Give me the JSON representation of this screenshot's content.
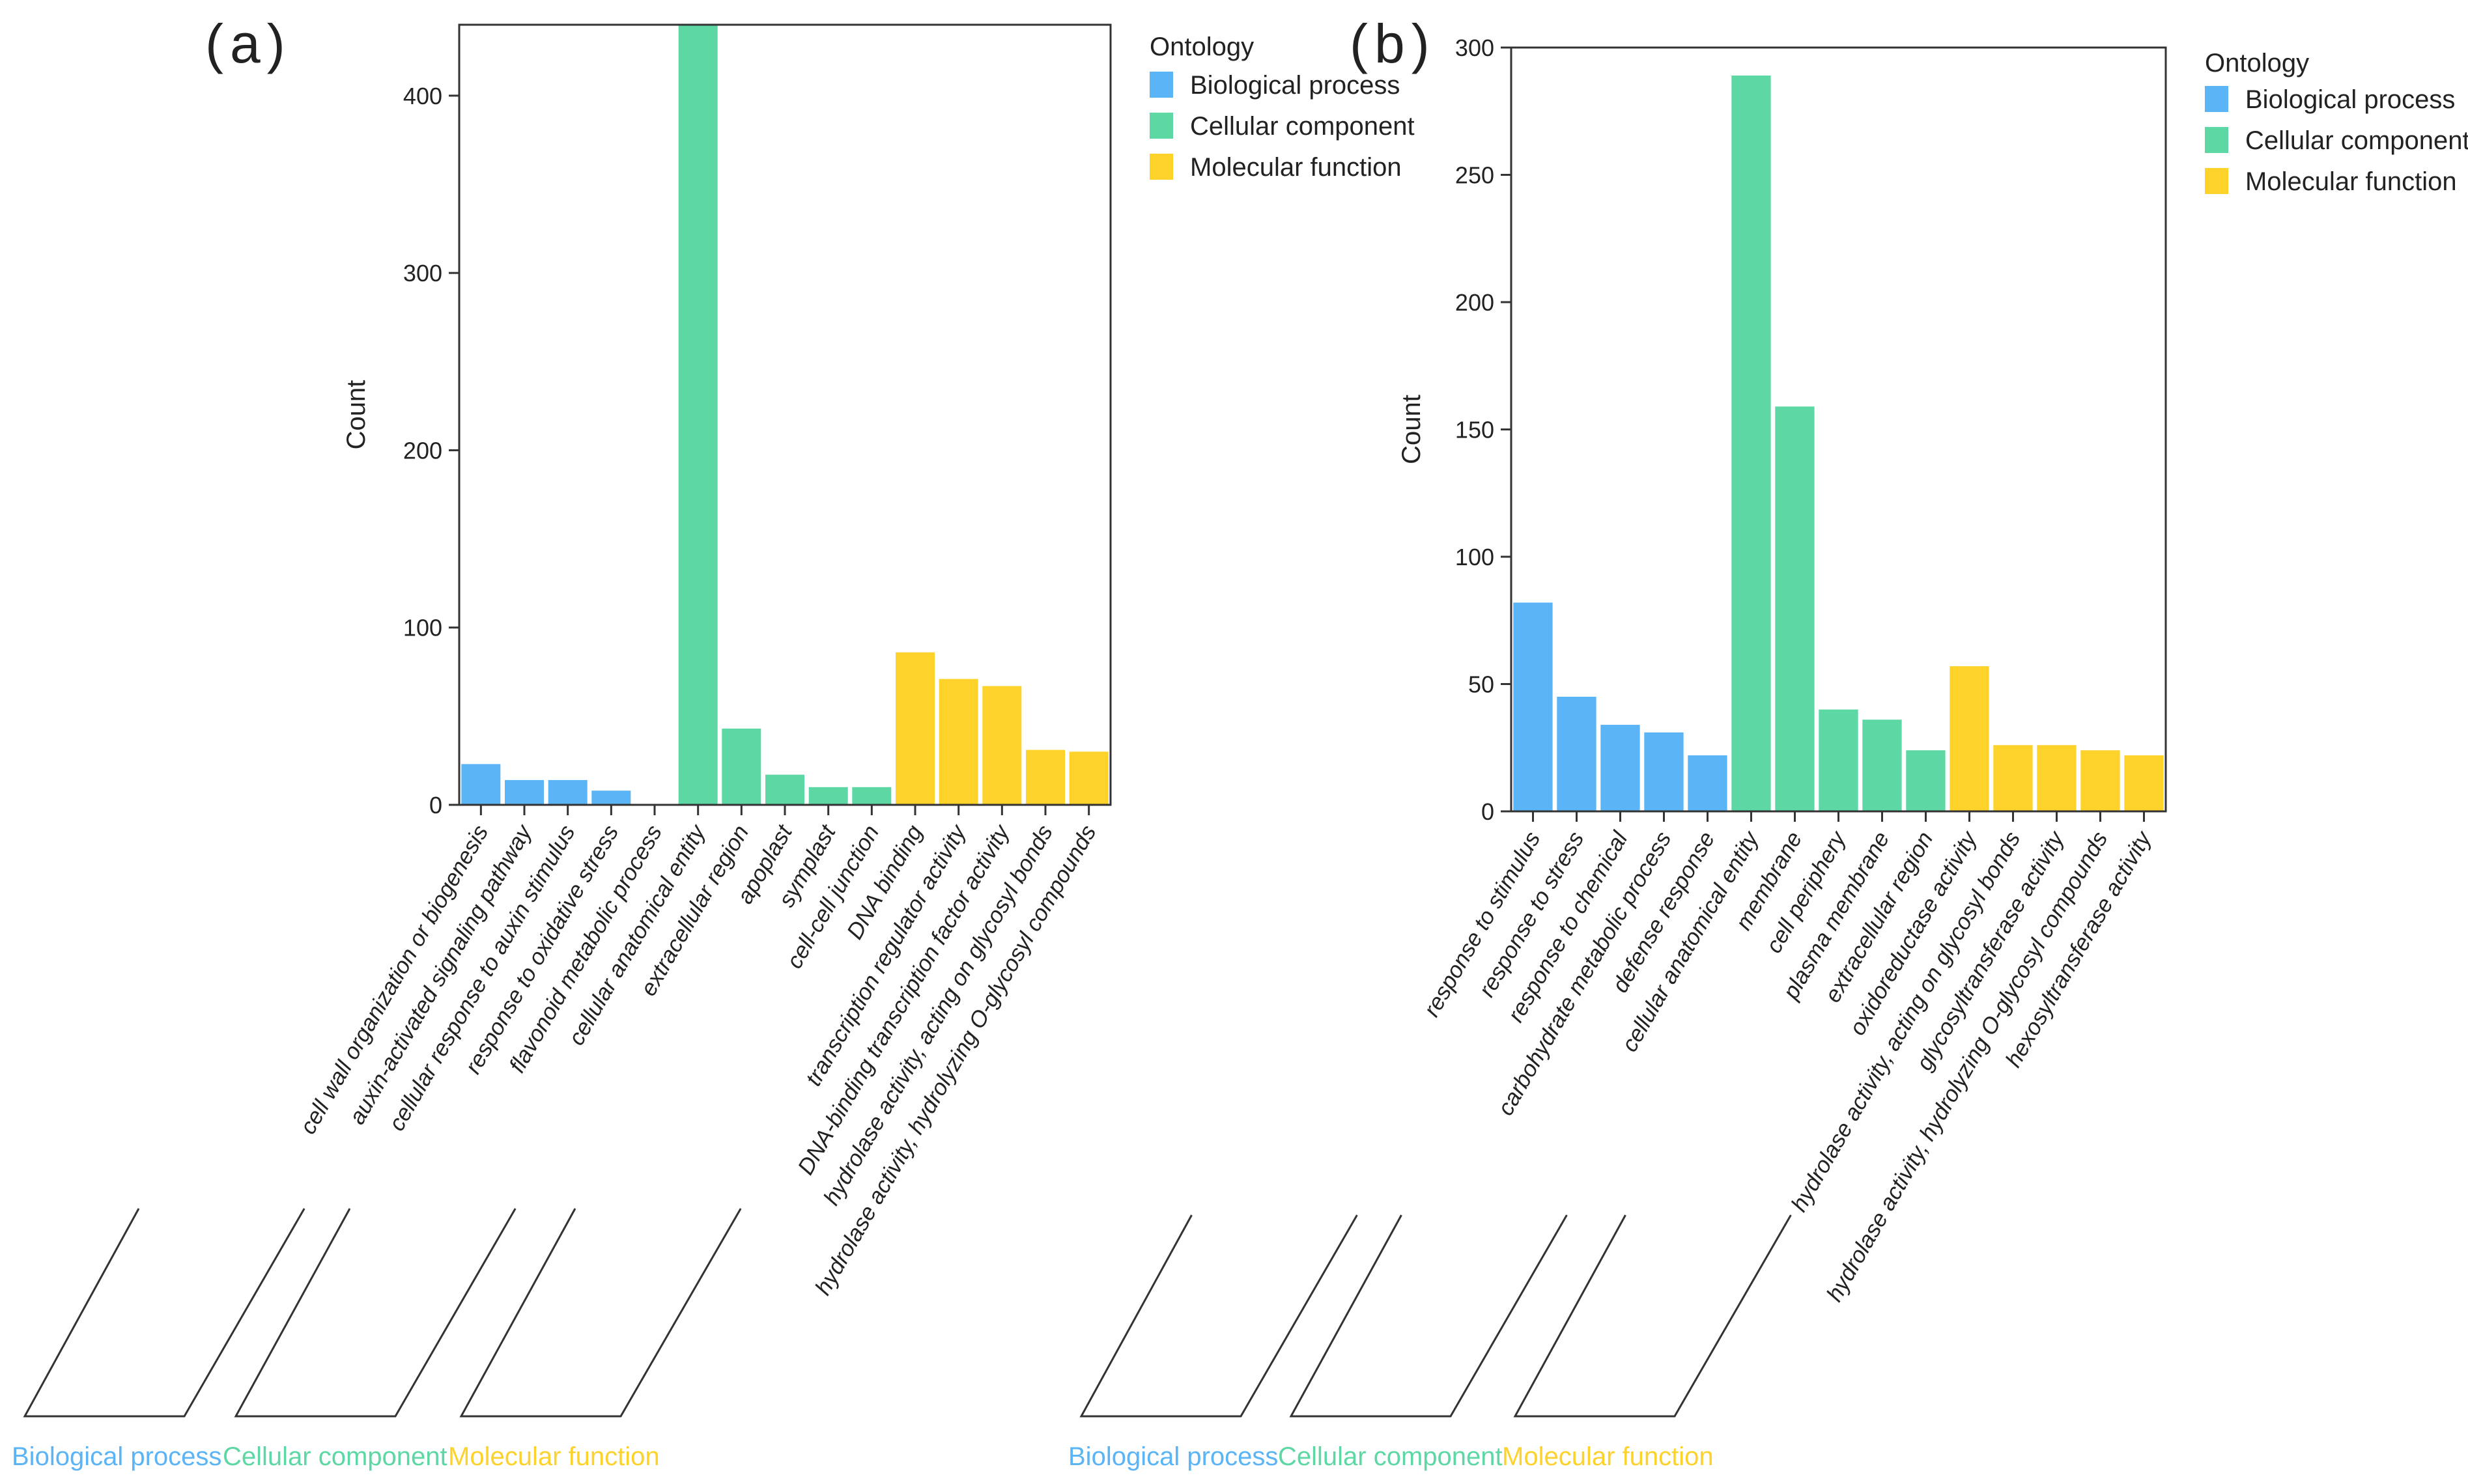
{
  "colors": {
    "bp": "#5ab4f5",
    "cc": "#5dd8a4",
    "mf": "#fdd22a",
    "axis": "#333333",
    "bracket": "#333333"
  },
  "chart_data": [
    {
      "panel": "(a)",
      "panel_open": "(",
      "panel_letter": "a",
      "panel_close": ")",
      "type": "bar",
      "ylabel": "Count",
      "ylim": [
        0,
        440
      ],
      "yticks": [
        0,
        100,
        200,
        300,
        400
      ],
      "legend": {
        "title": "Ontology",
        "placement": "right",
        "entries": [
          {
            "key": "bp",
            "label": "Biological process"
          },
          {
            "key": "cc",
            "label": "Cellular component"
          },
          {
            "key": "mf",
            "label": "Molecular function"
          }
        ]
      },
      "groups": [
        {
          "key": "bp",
          "label": "Biological process"
        },
        {
          "key": "cc",
          "label": "Cellular component"
        },
        {
          "key": "mf",
          "label": "Molecular function"
        }
      ],
      "bars": [
        {
          "category": "cell wall organization or biogenesis",
          "value": 23,
          "group": "bp"
        },
        {
          "category": "auxin-activated signaling pathway",
          "value": 14,
          "group": "bp"
        },
        {
          "category": "cellular response to auxin stimulus",
          "value": 14,
          "group": "bp"
        },
        {
          "category": "response to oxidative stress",
          "value": 8,
          "group": "bp"
        },
        {
          "category": "flavonoid metabolic process",
          "value": 0,
          "group": "bp"
        },
        {
          "category": "cellular anatomical entity",
          "value": 440,
          "group": "cc"
        },
        {
          "category": "extracellular region",
          "value": 43,
          "group": "cc"
        },
        {
          "category": "apoplast",
          "value": 17,
          "group": "cc"
        },
        {
          "category": "symplast",
          "value": 10,
          "group": "cc"
        },
        {
          "category": "cell-cell junction",
          "value": 10,
          "group": "cc"
        },
        {
          "category": "DNA binding",
          "value": 86,
          "group": "mf"
        },
        {
          "category": "transcription regulator activity",
          "value": 71,
          "group": "mf"
        },
        {
          "category": "DNA-binding transcription factor activity",
          "value": 67,
          "group": "mf"
        },
        {
          "category": "hydrolase activity, acting on glycosyl bonds",
          "value": 31,
          "group": "mf"
        },
        {
          "category": "hydrolase activity, hydrolyzing O-glycosyl compounds",
          "value": 30,
          "group": "mf"
        }
      ]
    },
    {
      "panel": "(b)",
      "panel_open": "(",
      "panel_letter": "b",
      "panel_close": ")",
      "type": "bar",
      "ylabel": "Count",
      "ylim": [
        0,
        300
      ],
      "yticks": [
        0,
        50,
        100,
        150,
        200,
        250,
        300
      ],
      "legend": {
        "title": "Ontology",
        "placement": "right",
        "entries": [
          {
            "key": "bp",
            "label": "Biological process"
          },
          {
            "key": "cc",
            "label": "Cellular component"
          },
          {
            "key": "mf",
            "label": "Molecular function"
          }
        ]
      },
      "groups": [
        {
          "key": "bp",
          "label": "Biological process"
        },
        {
          "key": "cc",
          "label": "Cellular component"
        },
        {
          "key": "mf",
          "label": "Molecular function"
        }
      ],
      "bars": [
        {
          "category": "response to stimulus",
          "value": 82,
          "group": "bp"
        },
        {
          "category": "response to stress",
          "value": 45,
          "group": "bp"
        },
        {
          "category": "response to chemical",
          "value": 34,
          "group": "bp"
        },
        {
          "category": "carbohydrate metabolic process",
          "value": 31,
          "group": "bp"
        },
        {
          "category": "defense response",
          "value": 22,
          "group": "bp"
        },
        {
          "category": "cellular anatomical entity",
          "value": 289,
          "group": "cc"
        },
        {
          "category": "membrane",
          "value": 159,
          "group": "cc"
        },
        {
          "category": "cell periphery",
          "value": 40,
          "group": "cc"
        },
        {
          "category": "plasma membrane",
          "value": 36,
          "group": "cc"
        },
        {
          "category": "extracellular region",
          "value": 24,
          "group": "cc"
        },
        {
          "category": "oxidoreductase activity",
          "value": 57,
          "group": "mf"
        },
        {
          "category": "hydrolase activity, acting on glycosyl bonds",
          "value": 26,
          "group": "mf"
        },
        {
          "category": "glycosyltransferase activity",
          "value": 26,
          "group": "mf"
        },
        {
          "category": "hydrolase activity, hydrolyzing O-glycosyl compounds",
          "value": 24,
          "group": "mf"
        },
        {
          "category": "hexosyltransferase activity",
          "value": 22,
          "group": "mf"
        }
      ]
    }
  ]
}
